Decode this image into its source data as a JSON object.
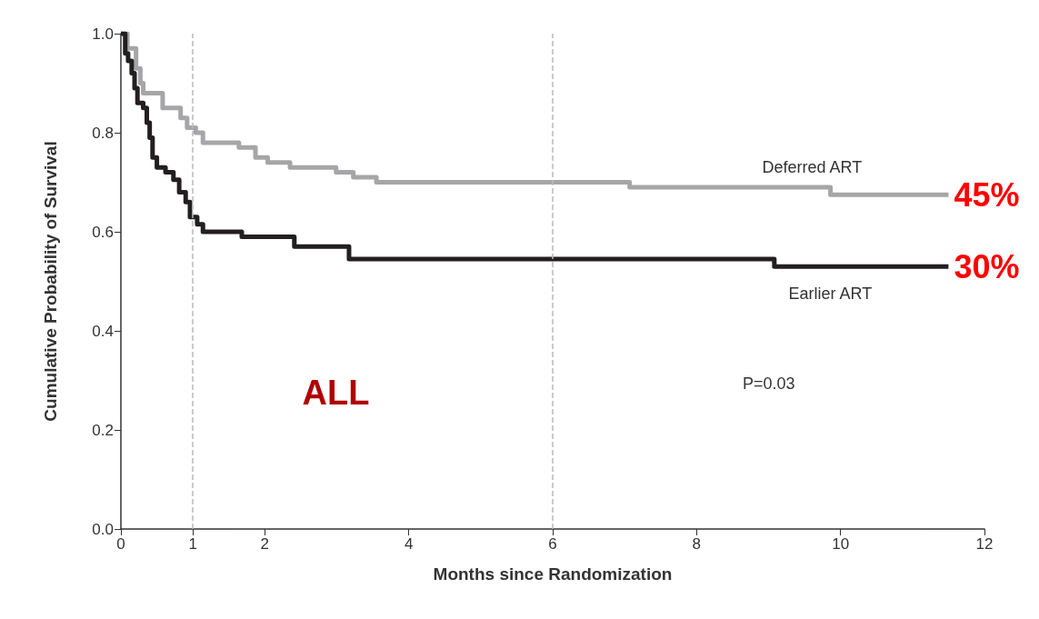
{
  "chart_data": {
    "type": "step",
    "xlabel": "Months since Randomization",
    "ylabel": "Cumulative Probability of Survival",
    "xlim": [
      0,
      12
    ],
    "xticks": [
      0,
      1,
      2,
      4,
      6,
      8,
      10,
      12
    ],
    "ylim": [
      0,
      1
    ],
    "yticks": [
      {
        "value": 0,
        "label": "0.0"
      },
      0.2,
      0.4,
      0.6,
      0.8,
      {
        "value": 1,
        "label": "1.0"
      }
    ],
    "grid": false,
    "legend": false,
    "marker": "none",
    "line_style": "solid",
    "series": [
      {
        "name": "Deferred ART",
        "color": "#a6a6a8",
        "x": [
          0,
          0.09,
          0.21,
          0.27,
          0.31,
          0.58,
          0.83,
          0.92,
          1.04,
          1.14,
          1.64,
          1.87,
          2.04,
          2.35,
          2.99,
          3.23,
          3.55,
          7.07,
          9.86,
          11.5
        ],
        "values": [
          1,
          0.97,
          0.93,
          0.9,
          0.88,
          0.85,
          0.83,
          0.81,
          0.8,
          0.78,
          0.77,
          0.75,
          0.74,
          0.73,
          0.72,
          0.71,
          0.7,
          0.69,
          0.675,
          0.675
        ]
      },
      {
        "name": "Earlier ART",
        "color": "#231f20",
        "x": [
          0,
          0.06,
          0.1,
          0.15,
          0.19,
          0.23,
          0.31,
          0.36,
          0.4,
          0.44,
          0.5,
          0.62,
          0.73,
          0.81,
          0.9,
          0.96,
          1.06,
          1.14,
          1.68,
          2.41,
          3.17,
          9.08,
          11.5
        ],
        "values": [
          1,
          0.96,
          0.945,
          0.92,
          0.89,
          0.86,
          0.85,
          0.82,
          0.79,
          0.75,
          0.73,
          0.72,
          0.705,
          0.68,
          0.66,
          0.63,
          0.615,
          0.6,
          0.59,
          0.57,
          0.545,
          0.53,
          0.53
        ]
      }
    ],
    "ref_lines": [
      {
        "axis": "x",
        "value": 1,
        "color": "#bbbbbb",
        "line_style": "dashed"
      },
      {
        "axis": "x",
        "value": 6,
        "color": "#bbbbbb",
        "line_style": "dashed"
      }
    ],
    "annotations": [
      {
        "text": "45%",
        "x": 11.5,
        "y": 0.675
      },
      {
        "text": "30%",
        "x": 11.5,
        "y": 0.53
      },
      "ALL",
      "P=0.03"
    ]
  }
}
